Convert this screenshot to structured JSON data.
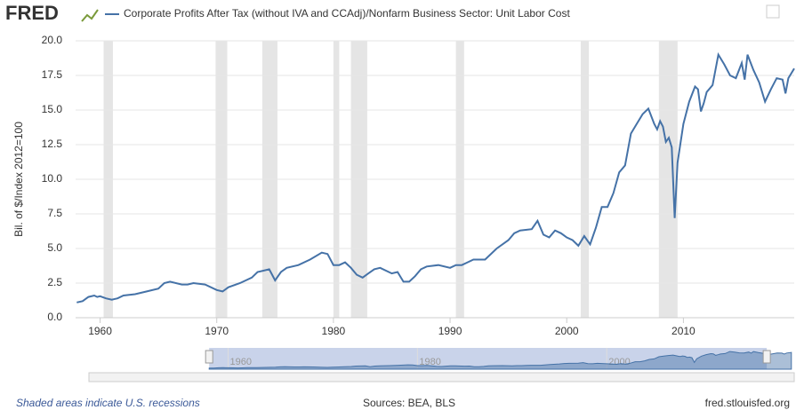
{
  "logo": "FRED",
  "chart_data": {
    "type": "line",
    "title": "Corporate Profits After Tax (without IVA and CCAdj)/Nonfarm Business Sector: Unit Labor Cost",
    "y_label": "Bil. of $/Index 2012=100",
    "x": [
      1958.0,
      1958.5,
      1959.0,
      1959.5,
      1959.75,
      1960.0,
      1960.5,
      1961.0,
      1961.5,
      1962.0,
      1963.0,
      1964.0,
      1965.0,
      1965.5,
      1966.0,
      1967.0,
      1967.5,
      1968.0,
      1969.0,
      1970.0,
      1970.5,
      1971.0,
      1972.0,
      1973.0,
      1973.5,
      1974.0,
      1974.5,
      1975.0,
      1975.5,
      1976.0,
      1977.0,
      1978.0,
      1979.0,
      1979.5,
      1980.0,
      1980.5,
      1981.0,
      1981.5,
      1982.0,
      1982.5,
      1983.0,
      1983.5,
      1984.0,
      1985.0,
      1985.5,
      1986.0,
      1986.5,
      1987.0,
      1987.5,
      1988.0,
      1989.0,
      1990.0,
      1990.5,
      1991.0,
      1991.5,
      1992.0,
      1993.0,
      1994.0,
      1995.0,
      1995.5,
      1996.0,
      1997.0,
      1997.5,
      1998.0,
      1998.5,
      1999.0,
      1999.5,
      2000.0,
      2000.5,
      2001.0,
      2001.5,
      2002.0,
      2002.5,
      2003.0,
      2003.5,
      2004.0,
      2004.5,
      2005.0,
      2005.5,
      2006.0,
      2006.5,
      2007.0,
      2007.5,
      2007.75,
      2008.0,
      2008.25,
      2008.5,
      2008.75,
      2009.0,
      2009.25,
      2009.5,
      2010.0,
      2010.5,
      2011.0,
      2011.25,
      2011.5,
      2011.75,
      2012.0,
      2012.5,
      2013.0,
      2013.5,
      2014.0,
      2014.5,
      2015.0,
      2015.25,
      2015.5,
      2016.0,
      2016.5,
      2017.0,
      2017.5,
      2018.0,
      2018.5,
      2018.75,
      2019.0,
      2019.5
    ],
    "series": [
      {
        "name": "Corporate Profits After Tax (without IVA and CCAdj)/Nonfarm Business Sector: Unit Labor Cost",
        "color": "#4572a7",
        "values": [
          1.1,
          1.2,
          1.5,
          1.6,
          1.5,
          1.55,
          1.4,
          1.3,
          1.4,
          1.6,
          1.7,
          1.9,
          2.1,
          2.5,
          2.6,
          2.4,
          2.4,
          2.5,
          2.4,
          2.0,
          1.9,
          2.2,
          2.5,
          2.9,
          3.3,
          3.4,
          3.5,
          2.7,
          3.3,
          3.6,
          3.8,
          4.2,
          4.7,
          4.6,
          3.8,
          3.8,
          4.0,
          3.6,
          3.1,
          2.9,
          3.2,
          3.5,
          3.6,
          3.2,
          3.3,
          2.6,
          2.6,
          3.0,
          3.5,
          3.7,
          3.8,
          3.6,
          3.8,
          3.8,
          4.0,
          4.2,
          4.2,
          5.0,
          5.6,
          6.1,
          6.3,
          6.4,
          7.0,
          6.0,
          5.8,
          6.3,
          6.1,
          5.8,
          5.6,
          5.2,
          5.9,
          5.3,
          6.5,
          8.0,
          8.0,
          9.0,
          10.5,
          11.0,
          13.3,
          14.0,
          14.7,
          15.1,
          14.0,
          13.6,
          14.2,
          13.8,
          12.7,
          13.0,
          12.3,
          7.2,
          11.2,
          14.0,
          15.6,
          16.7,
          16.5,
          14.9,
          15.5,
          16.3,
          16.8,
          19.0,
          18.3,
          17.5,
          17.3,
          18.4,
          17.2,
          19.0,
          17.9,
          17.0,
          15.6,
          16.5,
          17.3,
          17.2,
          16.2,
          17.3,
          18.0
        ]
      }
    ],
    "recessions": [
      [
        1960.3,
        1961.1
      ],
      [
        1969.9,
        1970.9
      ],
      [
        1973.9,
        1975.2
      ],
      [
        1980.0,
        1980.5
      ],
      [
        1981.5,
        1982.9
      ],
      [
        1990.5,
        1991.2
      ],
      [
        2001.2,
        2001.9
      ],
      [
        2007.9,
        2009.5
      ]
    ],
    "xlim": [
      1957.9,
      2019.5
    ],
    "xticks": [
      1960,
      1970,
      1980,
      1990,
      2000,
      2010
    ],
    "ylim": [
      0,
      20
    ],
    "yticks": [
      {
        "value": 0,
        "label": "0.0"
      },
      {
        "value": 2.5,
        "label": "2.5"
      },
      {
        "value": 5,
        "label": "5.0"
      },
      {
        "value": 7.5,
        "label": "7.5"
      },
      {
        "value": 10,
        "label": "10.0"
      },
      {
        "value": 12.5,
        "label": "12.5"
      },
      {
        "value": 15,
        "label": "15.0"
      },
      {
        "value": 17.5,
        "label": "17.5"
      },
      {
        "value": 20,
        "label": "20.0"
      }
    ],
    "grid": true,
    "navigator": {
      "xlim": [
        1945.3,
        2019.8
      ],
      "xticks": [
        1960,
        1980,
        2000
      ],
      "selection": [
        1958,
        2016.9
      ]
    },
    "note": "Shaded areas indicate U.S. recessions",
    "source": "Sources: BEA, BLS",
    "site": "fred.stlouisfed.org"
  }
}
